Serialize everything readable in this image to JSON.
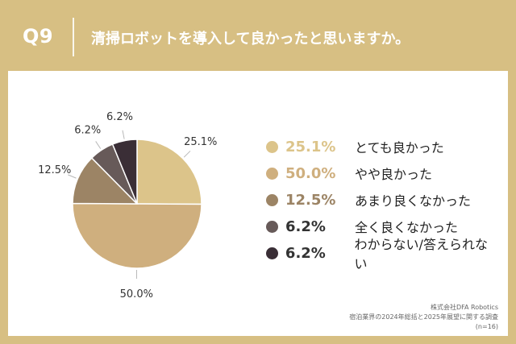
{
  "header": {
    "q_label": "Q9",
    "question": "清掃ロボットを導入して良かったと思いますか。"
  },
  "colors": {
    "background": "#d7bf83",
    "card": "#ffffff",
    "pct_default": "#333333"
  },
  "chart_data": {
    "type": "pie",
    "title": "",
    "slices": [
      {
        "label": "とても良かった",
        "value": 25.1,
        "color": "#dcc48a",
        "pct_label": "25.1%"
      },
      {
        "label": "やや良かった",
        "value": 50.0,
        "color": "#cfaf7e",
        "pct_label": "50.0%"
      },
      {
        "label": "あまり良くなかった",
        "value": 12.5,
        "color": "#9c8465",
        "pct_label": "12.5%"
      },
      {
        "label": "全く良くなかった",
        "value": 6.2,
        "color": "#675a59",
        "pct_label": "6.2%"
      },
      {
        "label": "わからない/答えられない",
        "value": 6.2,
        "color": "#3a2e36",
        "pct_label": "6.2%"
      }
    ],
    "start_angle": "12 o'clock",
    "direction": "clockwise",
    "legend_placement": "right"
  },
  "footer": {
    "logo_text": "DFA",
    "logo_sub": "Robotics",
    "source_lines": [
      "株式会社DFA Robotics",
      "宿泊業界の2024年総括と2025年展望に関する調査",
      "(n=16)"
    ]
  }
}
